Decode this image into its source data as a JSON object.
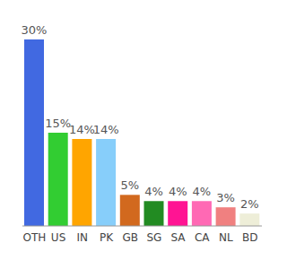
{
  "chart_data": {
    "type": "bar",
    "categories": [
      "OTH",
      "US",
      "IN",
      "PK",
      "GB",
      "SG",
      "SA",
      "CA",
      "NL",
      "BD"
    ],
    "values": [
      30,
      15,
      14,
      14,
      5,
      4,
      4,
      4,
      3,
      2
    ],
    "value_labels": [
      "30%",
      "15%",
      "14%",
      "14%",
      "5%",
      "4%",
      "4%",
      "4%",
      "3%",
      "2%"
    ],
    "colors": [
      "#4169e1",
      "#32cd32",
      "#ffa500",
      "#87cefa",
      "#d2691e",
      "#228b22",
      "#ff1493",
      "#ff69b4",
      "#f08080",
      "#eeeed8"
    ],
    "data_labels": true,
    "tick_labels": "x"
  }
}
